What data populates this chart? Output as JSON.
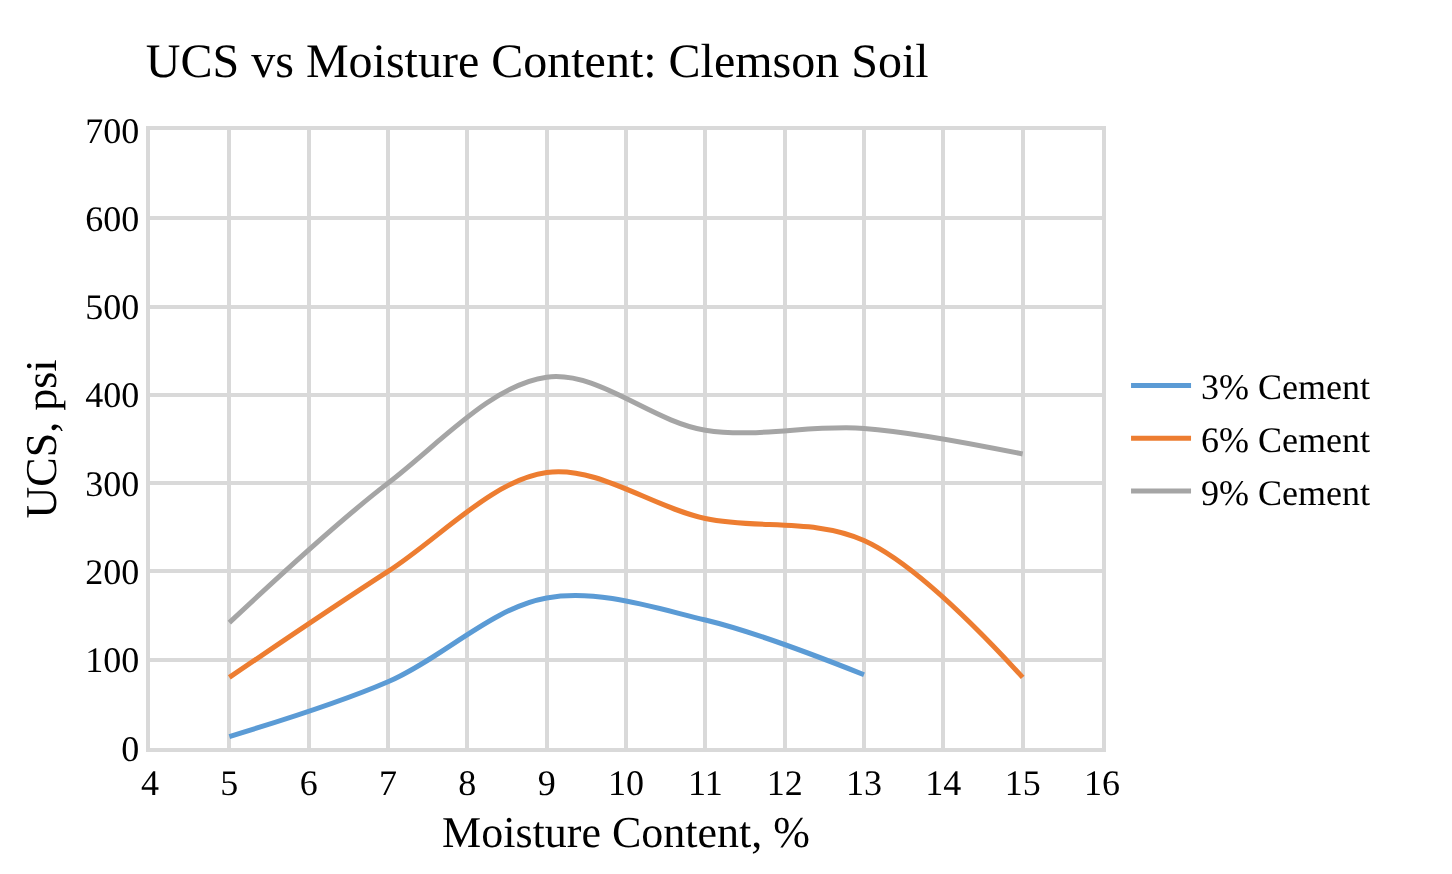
{
  "chart_data": {
    "type": "line",
    "title": "UCS vs Moisture Content: Clemson Soil",
    "xlabel": "Moisture Content, %",
    "ylabel": "UCS, psi",
    "xlim": [
      4,
      16
    ],
    "xticks": [
      4,
      5,
      6,
      7,
      8,
      9,
      10,
      11,
      12,
      13,
      14,
      15,
      16
    ],
    "ylim": [
      0,
      700
    ],
    "yticks": [
      0,
      100,
      200,
      300,
      400,
      500,
      600,
      700
    ],
    "grid": true,
    "legend": "right",
    "marker": "none",
    "line_style": "solid",
    "series": [
      {
        "name": "3% Cement",
        "color": "#5b9bd5",
        "x": [
          5,
          7,
          9,
          11,
          13
        ],
        "values": [
          13,
          75,
          170,
          145,
          83
        ]
      },
      {
        "name": "6% Cement",
        "color": "#ed7d31",
        "x": [
          5,
          7,
          9,
          11,
          13,
          15
        ],
        "values": [
          80,
          200,
          312,
          260,
          235,
          80
        ]
      },
      {
        "name": "9% Cement",
        "color": "#a5a5a5",
        "x": [
          5,
          7,
          9,
          11,
          13,
          15
        ],
        "values": [
          142,
          300,
          420,
          360,
          362,
          333
        ]
      }
    ]
  }
}
